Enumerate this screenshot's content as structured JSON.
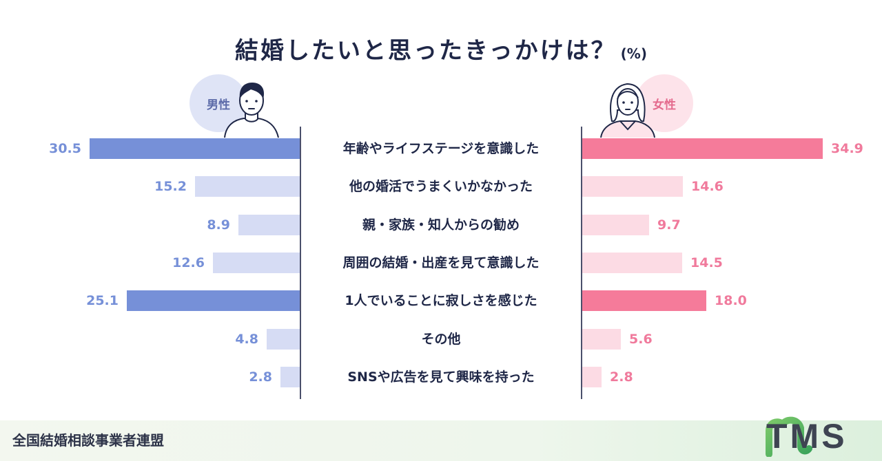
{
  "title": "結婚したいと思ったきっかけは？",
  "title_unit": "(%)",
  "male_label": "男性",
  "female_label": "女性",
  "colors": {
    "male_strong": "#7690d8",
    "male_light": "#d6dcf4",
    "female_strong": "#f57b9a",
    "female_light": "#fcdbe4",
    "male_text": "#7690d8",
    "female_text": "#f07a9c"
  },
  "chart_data": {
    "type": "bar",
    "orientation": "horizontal-butterfly",
    "title": "結婚したいと思ったきっかけは？",
    "unit": "(%)",
    "categories": [
      "年齢やライフステージを意識した",
      "他の婚活でうまくいかなかった",
      "親・家族・知人からの勧め",
      "周囲の結婚・出産を見て意識した",
      "1人でいることに寂しさを感じた",
      "その他",
      "SNSや広告を見て興味を持った"
    ],
    "series": [
      {
        "name": "男性",
        "values": [
          30.5,
          15.2,
          8.9,
          12.6,
          25.1,
          4.8,
          2.8
        ],
        "highlight": [
          true,
          false,
          false,
          false,
          true,
          false,
          false
        ]
      },
      {
        "name": "女性",
        "values": [
          34.9,
          14.6,
          9.7,
          14.5,
          18.0,
          5.6,
          2.8
        ],
        "highlight": [
          true,
          false,
          false,
          false,
          true,
          false,
          false
        ]
      }
    ],
    "value_labels": {
      "male": [
        "30.5",
        "15.2",
        "8.9",
        "12.6",
        "25.1",
        "4.8",
        "2.8"
      ],
      "female": [
        "34.9",
        "14.6",
        "9.7",
        "14.5",
        "18.0",
        "5.6",
        "2.8"
      ]
    }
  },
  "footer": {
    "organization": "全国結婚相談事業者連盟",
    "logo_text": "TMS",
    "logo_icon": "tms-m-logo-icon"
  }
}
